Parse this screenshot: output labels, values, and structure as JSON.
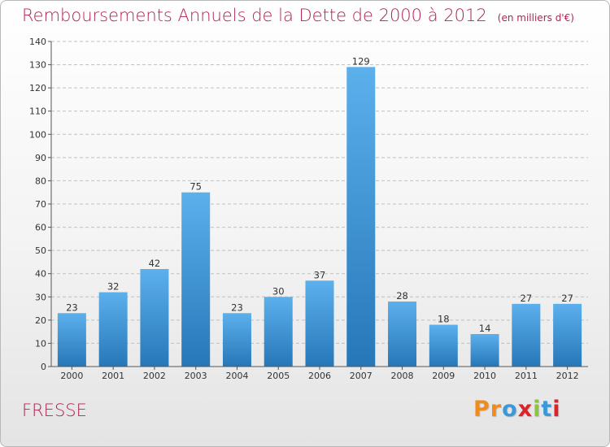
{
  "title": "Remboursements Annuels de la Dette de 2000 à 2012",
  "subtitle": "(en milliers d'€)",
  "commune": "FRESSE",
  "brand": {
    "text": "Proxiti",
    "letter_colors": [
      "#f08c1e",
      "#f08c1e",
      "#3a9ad9",
      "#d9242b",
      "#8cc63f",
      "#3a9ad9",
      "#d9242b"
    ]
  },
  "colors": {
    "title": "#b3234f",
    "bar_light": "#5cb0ec",
    "bar_dark": "#2677b8",
    "grid": "#bfbfbf"
  },
  "chart_data": {
    "type": "bar",
    "title": "Remboursements Annuels de la Dette de 2000 à 2012",
    "subtitle": "(en milliers d'€)",
    "categories": [
      "2000",
      "2001",
      "2002",
      "2003",
      "2004",
      "2005",
      "2006",
      "2007",
      "2008",
      "2009",
      "2010",
      "2011",
      "2012"
    ],
    "values": [
      23,
      32,
      42,
      75,
      23,
      30,
      37,
      129,
      28,
      18,
      14,
      27,
      27
    ],
    "ylim": [
      0,
      140
    ],
    "yticks": [
      0,
      10,
      20,
      30,
      40,
      50,
      60,
      70,
      80,
      90,
      100,
      110,
      120,
      130,
      140
    ],
    "grid": true,
    "legend": "none"
  }
}
